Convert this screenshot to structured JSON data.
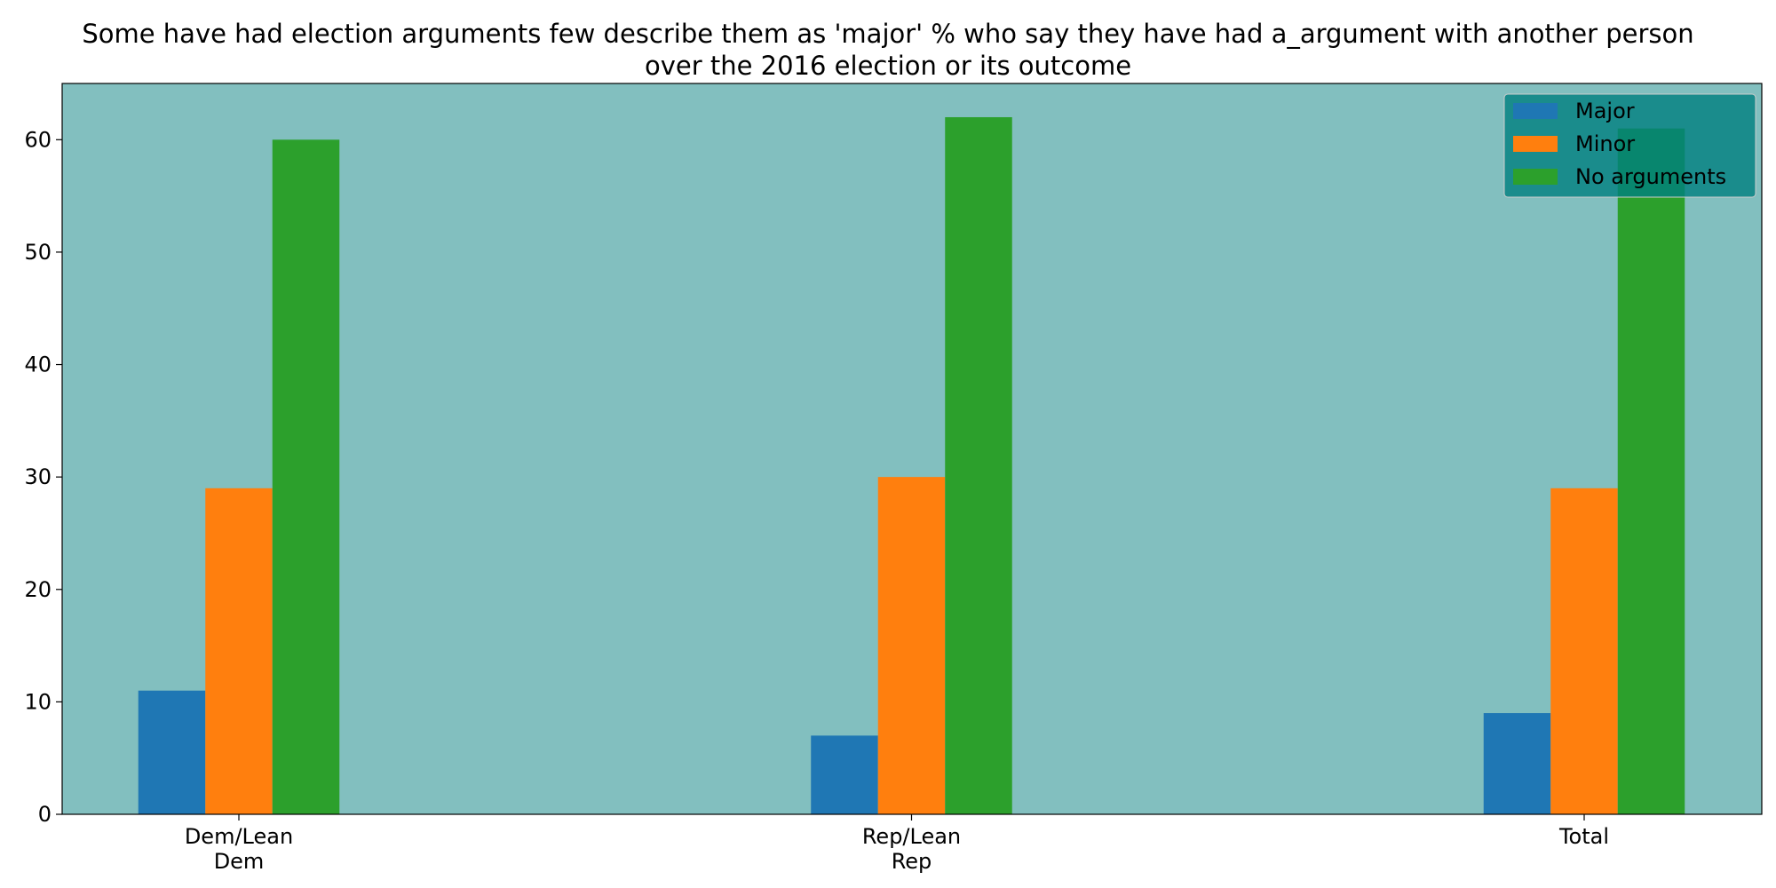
{
  "chart_data": {
    "type": "bar",
    "title": "Some have had election arguments few describe them as 'major' % who say they have had a_argument with another person\nover the 2016 election or its outcome",
    "xlabel": "",
    "ylabel": "",
    "categories": [
      "Dem/Lean\nDem",
      "Rep/Lean\nRep",
      "Total"
    ],
    "series": [
      {
        "name": "Major",
        "values": [
          11,
          7,
          9
        ],
        "color": "#1f77b4"
      },
      {
        "name": "Minor",
        "values": [
          29,
          30,
          29
        ],
        "color": "#ff7f0e"
      },
      {
        "name": "No arguments",
        "values": [
          60,
          62,
          61
        ],
        "color": "#2ca02c"
      }
    ],
    "ylim": [
      0,
      65
    ],
    "yticks": [
      0,
      10,
      20,
      30,
      40,
      50,
      60
    ],
    "grid": false,
    "legend_position": "top-right",
    "plot_background": "#82bfbf",
    "legend_background": "#008080"
  }
}
